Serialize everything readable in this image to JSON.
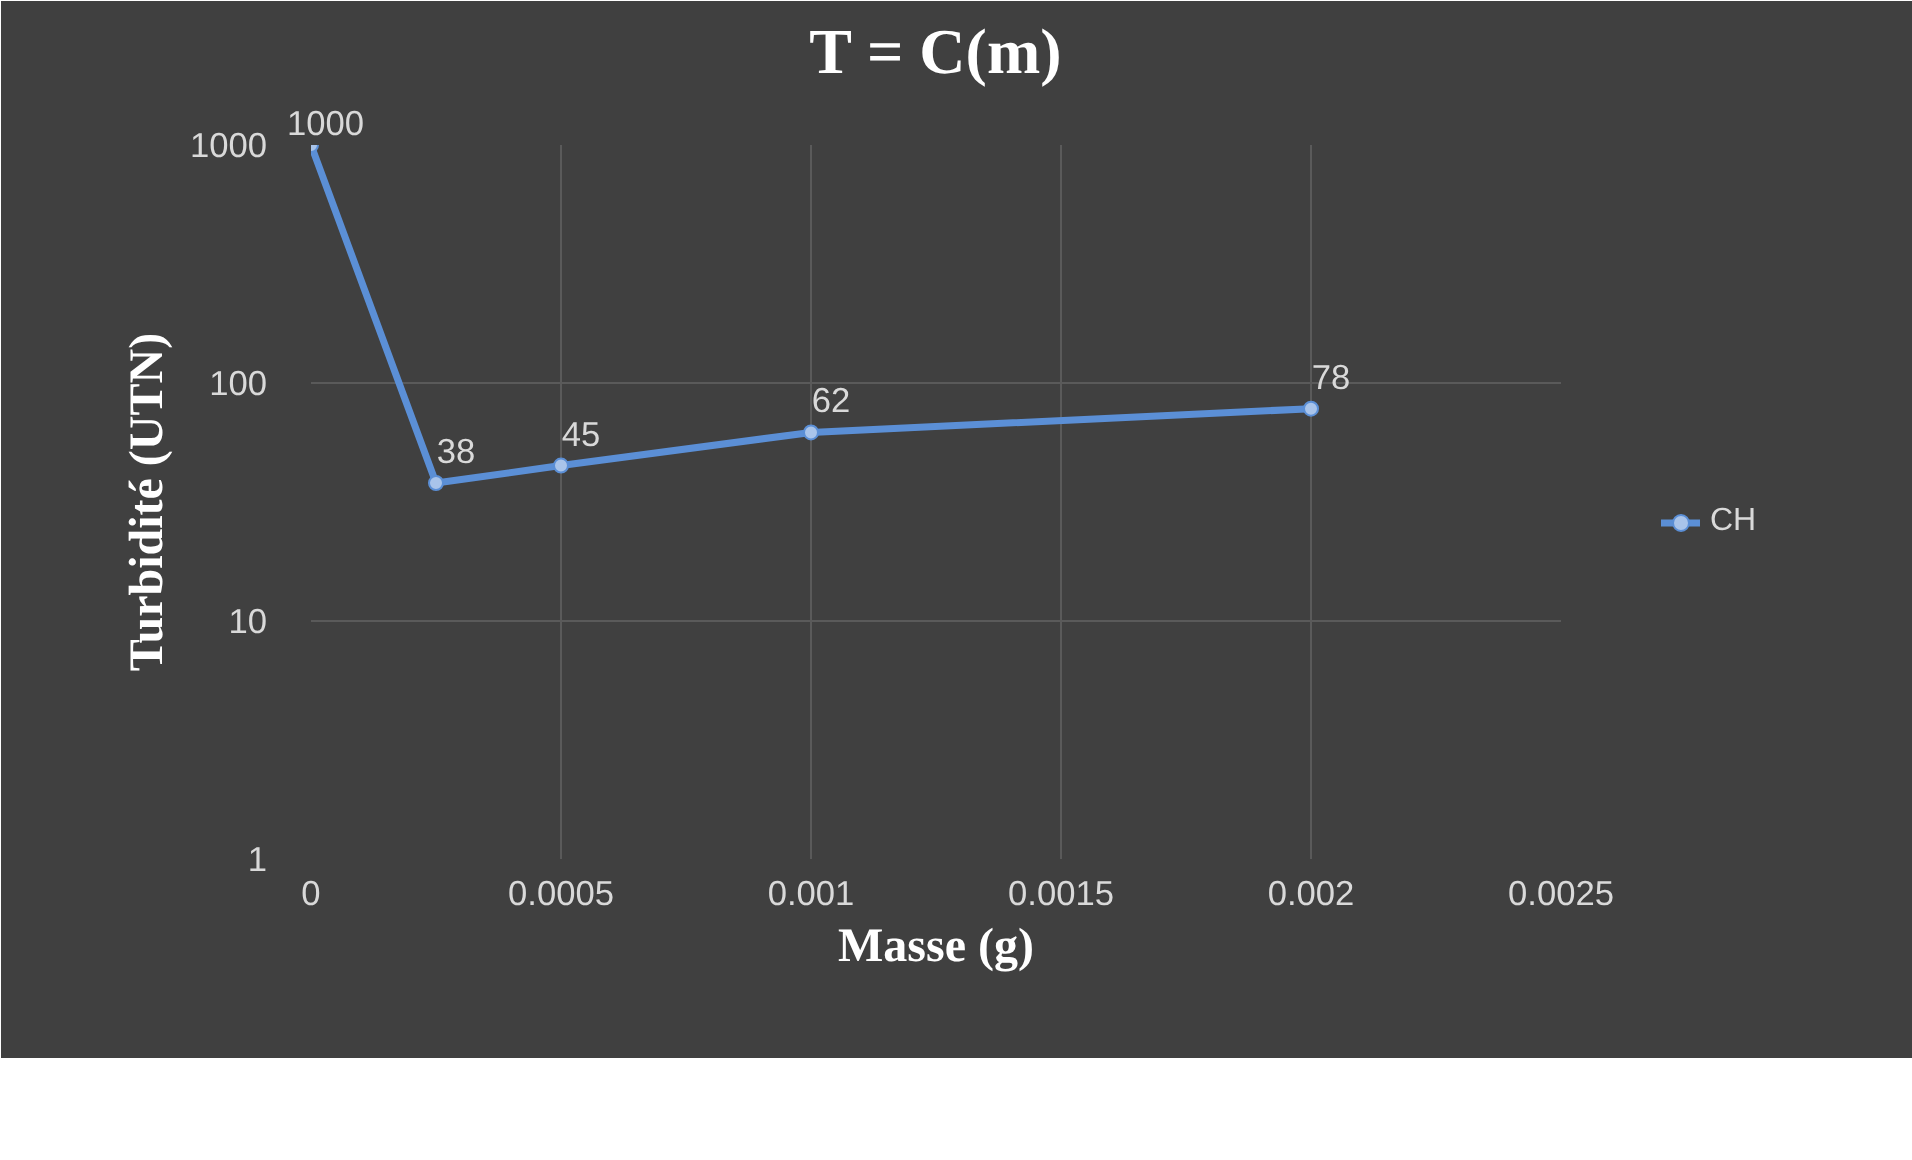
{
  "chart_data": {
    "type": "line",
    "title": "T = C(m)",
    "xlabel": "Masse (g)",
    "ylabel": "Turbidité (UTN)",
    "x": [
      0,
      0.00025,
      0.0005,
      0.001,
      0.002
    ],
    "series": [
      {
        "name": "CH",
        "color": "#5b8fd6",
        "values": [
          1000,
          38,
          45,
          62,
          78
        ]
      }
    ],
    "xlim": [
      0,
      0.0025
    ],
    "xticks": [
      0,
      0.0005,
      0.001,
      0.0015,
      0.002,
      0.0025
    ],
    "ylim": [
      1,
      1000
    ],
    "yticks": [
      1,
      10,
      100,
      1000
    ],
    "log": "y",
    "grid": true,
    "legend": "right",
    "marker": "circle",
    "data_labels": true
  }
}
